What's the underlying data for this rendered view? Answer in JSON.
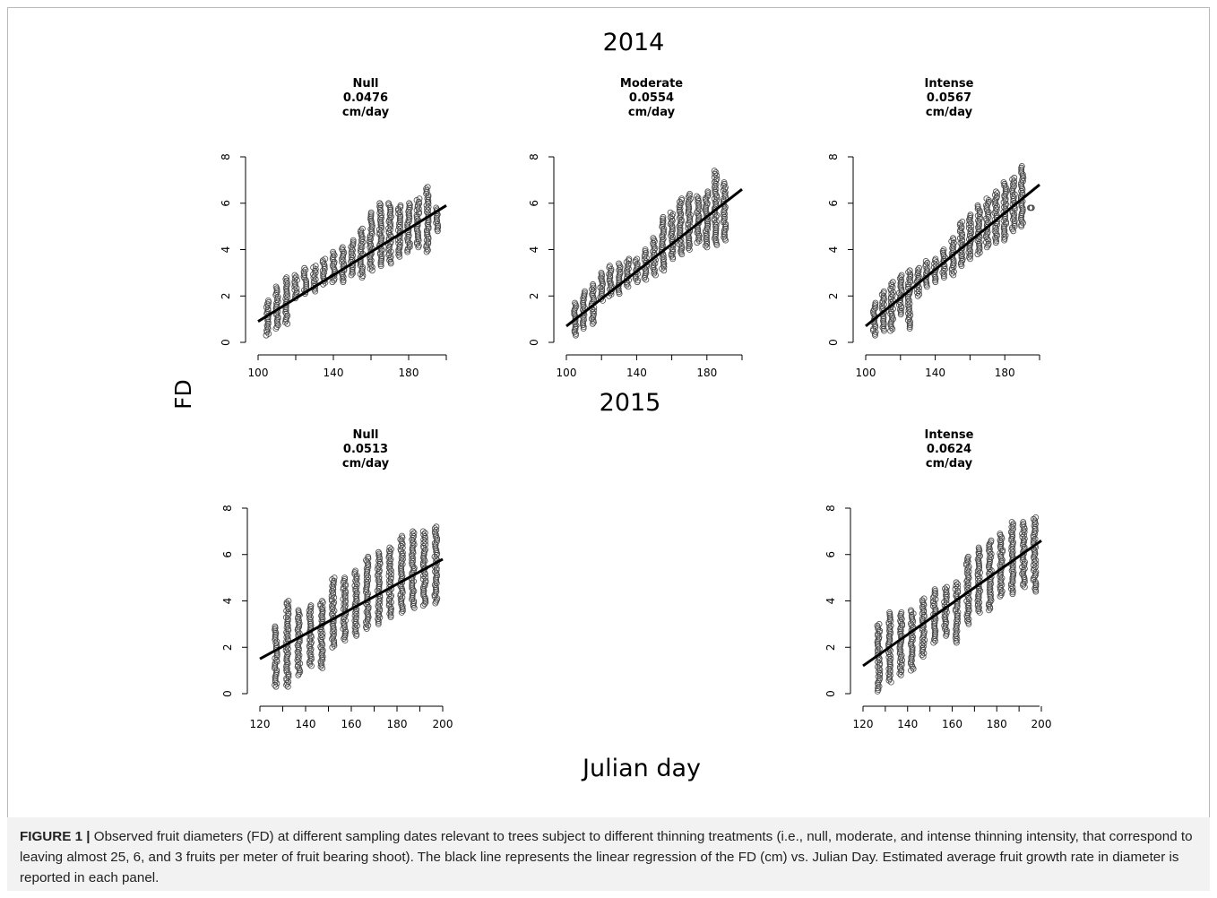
{
  "figure": {
    "year_top": "2014",
    "year_bottom": "2015",
    "ylabel": "FD",
    "xlabel": "Julian day",
    "caption_label": "FIGURE 1 |",
    "caption_text": "Observed fruit diameters (FD) at different sampling dates relevant to trees subject to different thinning treatments (i.e., null, moderate, and intense thinning intensity, that correspond to leaving almost 25, 6, and 3 fruits per meter of fruit bearing shoot). The black line represents the linear regression of the FD (cm) vs. Julian Day. Estimated average fruit growth rate in diameter is reported in each panel."
  },
  "chart_data": [
    {
      "type": "scatter",
      "year": "2014",
      "title_lines": [
        "Null",
        "0.0476",
        "cm/day"
      ],
      "xlim": [
        100,
        200
      ],
      "ylim": [
        0,
        8
      ],
      "xticks": [
        100,
        140,
        180
      ],
      "yticks": [
        0,
        2,
        4,
        6,
        8
      ],
      "sampling_days": [
        105,
        110,
        115,
        120,
        125,
        130,
        135,
        140,
        145,
        150,
        155,
        160,
        165,
        170,
        175,
        180,
        185,
        190,
        195
      ],
      "fd_ranges_cm": [
        [
          0.3,
          1.8
        ],
        [
          0.6,
          2.4
        ],
        [
          0.8,
          2.8
        ],
        [
          1.9,
          2.9
        ],
        [
          2.1,
          3.2
        ],
        [
          2.2,
          3.3
        ],
        [
          2.5,
          3.6
        ],
        [
          2.6,
          3.9
        ],
        [
          2.6,
          4.1
        ],
        [
          2.9,
          4.4
        ],
        [
          2.8,
          4.9
        ],
        [
          3.1,
          5.6
        ],
        [
          3.3,
          6.0
        ],
        [
          3.4,
          6.0
        ],
        [
          3.7,
          5.9
        ],
        [
          3.9,
          6.0
        ],
        [
          4.1,
          6.2
        ],
        [
          3.9,
          6.7
        ],
        [
          4.8,
          5.8
        ]
      ],
      "regression": {
        "slope": 0.0476,
        "start": [
          100,
          0.9
        ],
        "end": [
          200,
          5.9
        ]
      }
    },
    {
      "type": "scatter",
      "year": "2014",
      "title_lines": [
        "Moderate",
        "0.0554",
        "cm/day"
      ],
      "xlim": [
        100,
        200
      ],
      "ylim": [
        0,
        8
      ],
      "xticks": [
        100,
        140,
        180
      ],
      "yticks": [
        0,
        2,
        4,
        6,
        8
      ],
      "sampling_days": [
        105,
        110,
        115,
        120,
        125,
        130,
        135,
        140,
        145,
        150,
        155,
        160,
        165,
        170,
        175,
        180,
        185,
        190
      ],
      "fd_ranges_cm": [
        [
          0.3,
          1.7
        ],
        [
          0.6,
          2.2
        ],
        [
          0.8,
          2.5
        ],
        [
          1.8,
          3.0
        ],
        [
          2.0,
          3.3
        ],
        [
          2.1,
          3.4
        ],
        [
          2.4,
          3.6
        ],
        [
          2.6,
          3.6
        ],
        [
          2.7,
          4.0
        ],
        [
          2.9,
          4.5
        ],
        [
          3.1,
          5.4
        ],
        [
          3.6,
          5.6
        ],
        [
          3.8,
          6.2
        ],
        [
          4.0,
          6.4
        ],
        [
          4.3,
          6.3
        ],
        [
          4.1,
          6.5
        ],
        [
          4.2,
          7.4
        ],
        [
          4.4,
          6.9
        ]
      ],
      "regression": {
        "slope": 0.0554,
        "start": [
          100,
          0.7
        ],
        "end": [
          200,
          6.6
        ]
      }
    },
    {
      "type": "scatter",
      "year": "2014",
      "title_lines": [
        "Intense",
        "0.0567",
        "cm/day"
      ],
      "xlim": [
        100,
        200
      ],
      "ylim": [
        0,
        8
      ],
      "xticks": [
        100,
        140,
        180
      ],
      "yticks": [
        0,
        2,
        4,
        6,
        8
      ],
      "sampling_days": [
        105,
        110,
        115,
        120,
        125,
        130,
        135,
        140,
        145,
        150,
        155,
        160,
        165,
        170,
        175,
        180,
        185,
        190,
        195
      ],
      "fd_ranges_cm": [
        [
          0.3,
          1.7
        ],
        [
          0.5,
          2.2
        ],
        [
          0.5,
          2.6
        ],
        [
          1.2,
          2.9
        ],
        [
          0.6,
          3.1
        ],
        [
          2.0,
          3.2
        ],
        [
          2.4,
          3.5
        ],
        [
          2.6,
          3.6
        ],
        [
          2.8,
          4.0
        ],
        [
          2.9,
          4.5
        ],
        [
          3.3,
          5.2
        ],
        [
          3.6,
          5.5
        ],
        [
          3.8,
          5.9
        ],
        [
          4.1,
          6.2
        ],
        [
          4.3,
          6.5
        ],
        [
          4.4,
          6.9
        ],
        [
          4.8,
          7.1
        ],
        [
          5.0,
          7.6
        ],
        [
          5.8,
          5.8
        ]
      ],
      "regression": {
        "slope": 0.0567,
        "start": [
          100,
          0.7
        ],
        "end": [
          200,
          6.8
        ]
      }
    },
    {
      "type": "scatter",
      "year": "2015",
      "title_lines": [
        "Null",
        "0.0513",
        "cm/day"
      ],
      "xlim": [
        120,
        200
      ],
      "ylim": [
        0,
        8
      ],
      "xticks": [
        120,
        140,
        160,
        180,
        200
      ],
      "yticks": [
        0,
        2,
        4,
        6,
        8
      ],
      "sampling_days": [
        127,
        132,
        137,
        142,
        147,
        152,
        157,
        162,
        167,
        172,
        177,
        182,
        187,
        192,
        197
      ],
      "fd_ranges_cm": [
        [
          0.3,
          2.9
        ],
        [
          0.3,
          4.0
        ],
        [
          0.8,
          3.6
        ],
        [
          1.2,
          3.8
        ],
        [
          1.1,
          4.0
        ],
        [
          2.0,
          5.0
        ],
        [
          2.3,
          5.0
        ],
        [
          2.5,
          5.3
        ],
        [
          2.8,
          5.9
        ],
        [
          3.0,
          6.1
        ],
        [
          3.3,
          6.3
        ],
        [
          3.5,
          6.8
        ],
        [
          3.7,
          7.0
        ],
        [
          3.8,
          7.0
        ],
        [
          3.9,
          7.2
        ]
      ],
      "regression": {
        "slope": 0.0513,
        "start": [
          120,
          1.5
        ],
        "end": [
          200,
          5.8
        ]
      }
    },
    {
      "type": "scatter",
      "year": "2015",
      "title_lines": [
        "Intense",
        "0.0624",
        "cm/day"
      ],
      "xlim": [
        120,
        200
      ],
      "ylim": [
        0,
        8
      ],
      "xticks": [
        120,
        140,
        160,
        180,
        200
      ],
      "yticks": [
        0,
        2,
        4,
        6,
        8
      ],
      "sampling_days": [
        127,
        132,
        137,
        142,
        147,
        152,
        157,
        162,
        167,
        172,
        177,
        182,
        187,
        192,
        197
      ],
      "fd_ranges_cm": [
        [
          0.1,
          3.0
        ],
        [
          0.5,
          3.5
        ],
        [
          0.8,
          3.5
        ],
        [
          1.0,
          3.6
        ],
        [
          1.6,
          4.1
        ],
        [
          2.2,
          4.5
        ],
        [
          2.5,
          4.6
        ],
        [
          2.2,
          4.8
        ],
        [
          3.0,
          5.9
        ],
        [
          3.5,
          6.3
        ],
        [
          3.6,
          6.6
        ],
        [
          4.2,
          6.9
        ],
        [
          4.3,
          7.4
        ],
        [
          4.6,
          7.4
        ],
        [
          4.4,
          7.6
        ]
      ],
      "regression": {
        "slope": 0.0624,
        "start": [
          120,
          1.2
        ],
        "end": [
          200,
          6.6
        ]
      }
    }
  ]
}
